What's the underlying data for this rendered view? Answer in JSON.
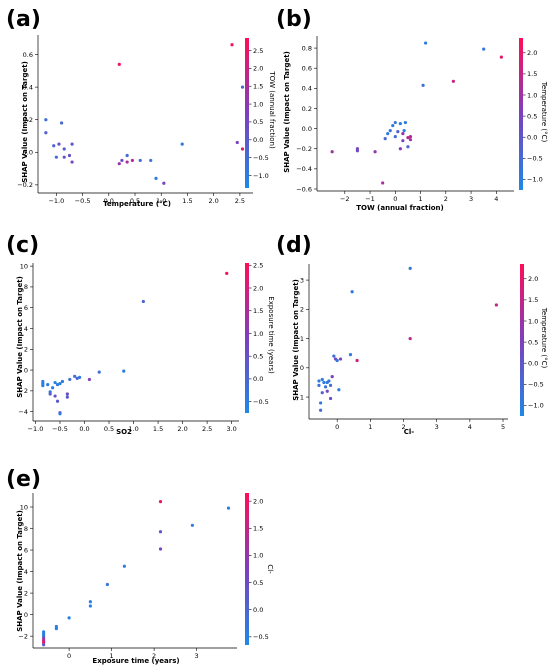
{
  "colors": {
    "low": "#1e88e5",
    "high": "#ff0d57"
  },
  "chart_data": [
    {
      "panel": "(a)",
      "type": "scatter",
      "xlabel": "Temperature (°C)",
      "ylabel": "SHAP Value (Impact on Target)",
      "xlim": [
        -1.35,
        2.75
      ],
      "ylim": [
        -0.25,
        0.72
      ],
      "xticks": [
        -1.0,
        -0.5,
        0.0,
        0.5,
        1.0,
        1.5,
        2.0,
        2.5
      ],
      "xtick_labels": [
        "−1.0",
        "−0.5",
        "0.0",
        "0.5",
        "1.0",
        "1.5",
        "2.0",
        "2.5"
      ],
      "yticks": [
        -0.2,
        0.0,
        0.2,
        0.4,
        0.6
      ],
      "ytick_labels": [
        "−0.2",
        "0.0",
        "0.2",
        "0.4",
        "0.6"
      ],
      "colorbar": {
        "label": "TOW (annual fraction)",
        "range": [
          -1.35,
          2.85
        ],
        "ticks": [
          -1.0,
          -0.5,
          0.0,
          0.5,
          1.0,
          1.5,
          2.0,
          2.5
        ],
        "tick_labels": [
          "−1.0",
          "−0.5",
          "0.0",
          "0.5",
          "1.0",
          "1.5",
          "2.0",
          "2.5"
        ]
      },
      "points": [
        [
          -1.2,
          0.2,
          -0.6
        ],
        [
          -1.2,
          0.12,
          -0.2
        ],
        [
          -1.05,
          0.04,
          -0.3
        ],
        [
          -1.0,
          -0.03,
          -0.5
        ],
        [
          -0.95,
          0.05,
          0.1
        ],
        [
          -0.9,
          0.18,
          -0.4
        ],
        [
          -0.85,
          0.02,
          -0.1
        ],
        [
          -0.85,
          -0.03,
          0.2
        ],
        [
          -0.75,
          -0.02,
          0.3
        ],
        [
          -0.7,
          0.05,
          0.0
        ],
        [
          -0.7,
          -0.06,
          0.5
        ],
        [
          0.2,
          0.54,
          2.6
        ],
        [
          0.2,
          -0.07,
          1.2
        ],
        [
          0.25,
          -0.05,
          0.4
        ],
        [
          0.35,
          -0.02,
          -0.5
        ],
        [
          0.35,
          -0.06,
          1.5
        ],
        [
          0.45,
          -0.05,
          1.8
        ],
        [
          0.6,
          -0.05,
          -0.3
        ],
        [
          0.8,
          -0.05,
          -0.8
        ],
        [
          0.9,
          -0.16,
          -0.9
        ],
        [
          1.05,
          -0.19,
          0.7
        ],
        [
          1.4,
          0.05,
          -0.9
        ],
        [
          2.35,
          0.66,
          2.7
        ],
        [
          2.45,
          0.06,
          0.6
        ],
        [
          2.55,
          0.4,
          -0.4
        ],
        [
          2.55,
          0.02,
          2.3
        ]
      ]
    },
    {
      "panel": "(b)",
      "type": "scatter",
      "xlabel": "TOW (annual fraction)",
      "ylabel": "SHAP Value (Impact on Target)",
      "xlim": [
        -3.1,
        4.7
      ],
      "ylim": [
        -0.62,
        0.92
      ],
      "xticks": [
        -2,
        -1,
        0,
        1,
        2,
        3,
        4
      ],
      "xtick_labels": [
        "−2",
        "−1",
        "0",
        "1",
        "2",
        "3",
        "4"
      ],
      "yticks": [
        -0.6,
        -0.4,
        -0.2,
        0.0,
        0.2,
        0.4,
        0.6,
        0.8
      ],
      "ytick_labels": [
        "−0.6",
        "−0.4",
        "−0.2",
        "0.0",
        "0.2",
        "0.4",
        "0.6",
        "0.8"
      ],
      "colorbar": {
        "label": "Temperature (°C)",
        "range": [
          -1.25,
          2.35
        ],
        "ticks": [
          -1.0,
          -0.5,
          0.0,
          0.5,
          1.0,
          1.5,
          2.0
        ],
        "tick_labels": [
          "−1.0",
          "−0.5",
          "0.0",
          "0.5",
          "1.0",
          "1.5",
          "2.0"
        ]
      },
      "points": [
        [
          -2.5,
          -0.23,
          1.0
        ],
        [
          -1.5,
          -0.2,
          0.5
        ],
        [
          -1.5,
          -0.22,
          0.3
        ],
        [
          -0.8,
          -0.23,
          0.8
        ],
        [
          -0.5,
          -0.54,
          1.1
        ],
        [
          -0.4,
          -0.1,
          -0.5
        ],
        [
          -0.3,
          -0.05,
          -1.0
        ],
        [
          -0.2,
          -0.02,
          -0.7
        ],
        [
          -0.1,
          0.03,
          -1.0
        ],
        [
          0.0,
          0.06,
          -0.8
        ],
        [
          0.0,
          -0.08,
          -0.6
        ],
        [
          0.1,
          -0.03,
          -0.3
        ],
        [
          0.2,
          0.05,
          -1.0
        ],
        [
          0.2,
          -0.2,
          0.7
        ],
        [
          0.3,
          -0.05,
          0.9
        ],
        [
          0.3,
          -0.12,
          0.5
        ],
        [
          0.35,
          -0.02,
          -1.0
        ],
        [
          0.4,
          0.06,
          -0.9
        ],
        [
          0.5,
          -0.09,
          1.3
        ],
        [
          0.5,
          -0.18,
          -0.4
        ],
        [
          0.6,
          -0.08,
          1.4
        ],
        [
          0.6,
          -0.11,
          1.0
        ],
        [
          1.1,
          0.43,
          -0.7
        ],
        [
          1.2,
          0.85,
          -0.9
        ],
        [
          2.3,
          0.47,
          1.6
        ],
        [
          3.5,
          0.79,
          -0.8
        ],
        [
          4.2,
          0.71,
          2.0
        ]
      ]
    },
    {
      "panel": "(c)",
      "type": "scatter",
      "xlabel": "SO2",
      "ylabel": "SHAP Value (Impact on Target)",
      "xlim": [
        -1.05,
        3.15
      ],
      "ylim": [
        -4.9,
        10.3
      ],
      "xticks": [
        -1.0,
        -0.5,
        0.0,
        0.5,
        1.0,
        1.5,
        2.0,
        2.5,
        3.0
      ],
      "xtick_labels": [
        "−1.0",
        "−0.5",
        "0.0",
        "0.5",
        "1.0",
        "1.5",
        "2.0",
        "2.5",
        "3.0"
      ],
      "yticks": [
        -4,
        -2,
        0,
        2,
        4,
        6,
        8,
        10
      ],
      "ytick_labels": [
        "−4",
        "−2",
        "0",
        "2",
        "4",
        "6",
        "8",
        "10"
      ],
      "colorbar": {
        "label": "Exposure time (years)",
        "range": [
          -0.75,
          2.55
        ],
        "ticks": [
          -0.5,
          0.0,
          0.5,
          1.0,
          1.5,
          2.0,
          2.5
        ],
        "tick_labels": [
          "−0.5",
          "0.0",
          "0.5",
          "1.0",
          "1.5",
          "2.0",
          "2.5"
        ]
      },
      "points": [
        [
          -0.85,
          -1.1,
          -0.6
        ],
        [
          -0.85,
          -1.3,
          -0.5
        ],
        [
          -0.85,
          -1.5,
          -0.6
        ],
        [
          -0.75,
          -1.4,
          -0.5
        ],
        [
          -0.7,
          -2.1,
          -0.4
        ],
        [
          -0.7,
          -2.3,
          0.2
        ],
        [
          -0.65,
          -1.7,
          -0.6
        ],
        [
          -0.6,
          -1.2,
          -0.6
        ],
        [
          -0.6,
          -2.5,
          0.4
        ],
        [
          -0.55,
          -1.4,
          -0.5
        ],
        [
          -0.55,
          -3.0,
          0.3
        ],
        [
          -0.5,
          -1.3,
          -0.6
        ],
        [
          -0.5,
          -4.1,
          0.6
        ],
        [
          -0.5,
          -4.2,
          -0.4
        ],
        [
          -0.45,
          -1.1,
          -0.5
        ],
        [
          -0.35,
          -2.3,
          0.5
        ],
        [
          -0.35,
          -2.6,
          0.2
        ],
        [
          -0.3,
          -0.9,
          -0.2
        ],
        [
          -0.2,
          -0.6,
          -0.1
        ],
        [
          -0.15,
          -0.8,
          0.0
        ],
        [
          -0.1,
          -0.7,
          -0.4
        ],
        [
          0.1,
          -0.9,
          0.9
        ],
        [
          0.3,
          -0.2,
          -0.2
        ],
        [
          0.8,
          -0.1,
          -0.5
        ],
        [
          1.2,
          6.6,
          0.0
        ],
        [
          2.9,
          9.3,
          2.4
        ]
      ]
    },
    {
      "panel": "(d)",
      "type": "scatter",
      "xlabel": "Cl-",
      "ylabel": "SHAP Value (Impact on Target)",
      "xlim": [
        -0.85,
        5.15
      ],
      "ylim": [
        -1.75,
        3.55
      ],
      "xticks": [
        0,
        1,
        2,
        3,
        4,
        5
      ],
      "xtick_labels": [
        "0",
        "1",
        "2",
        "3",
        "4",
        "5"
      ],
      "yticks": [
        -1,
        0,
        1,
        2,
        3
      ],
      "ytick_labels": [
        "−1",
        "0",
        "1",
        "2",
        "3"
      ],
      "colorbar": {
        "label": "Temperature (°C)",
        "range": [
          -1.25,
          2.35
        ],
        "ticks": [
          -1.0,
          -0.5,
          0.0,
          0.5,
          1.0,
          1.5,
          2.0
        ],
        "tick_labels": [
          "−1.0",
          "−0.5",
          "0.0",
          "0.5",
          "1.0",
          "1.5",
          "2.0"
        ]
      },
      "points": [
        [
          -0.55,
          -0.45,
          -0.9
        ],
        [
          -0.55,
          -0.6,
          -0.6
        ],
        [
          -0.5,
          -1.45,
          -0.5
        ],
        [
          -0.5,
          -1.2,
          -0.8
        ],
        [
          -0.45,
          -0.85,
          -0.3
        ],
        [
          -0.45,
          -0.4,
          -0.9
        ],
        [
          -0.4,
          -0.5,
          -1.0
        ],
        [
          -0.35,
          -0.65,
          -0.7
        ],
        [
          -0.3,
          -0.5,
          -0.9
        ],
        [
          -0.3,
          -0.8,
          0.3
        ],
        [
          -0.25,
          -0.45,
          -0.8
        ],
        [
          -0.2,
          -1.05,
          0.2
        ],
        [
          -0.2,
          -0.6,
          -0.6
        ],
        [
          -0.15,
          -0.3,
          0.5
        ],
        [
          -0.1,
          0.4,
          -0.6
        ],
        [
          -0.05,
          0.3,
          0.6
        ],
        [
          0.0,
          0.25,
          -0.8
        ],
        [
          0.05,
          -0.75,
          -0.9
        ],
        [
          0.1,
          0.3,
          0.3
        ],
        [
          0.4,
          0.45,
          -0.9
        ],
        [
          0.45,
          2.6,
          -0.9
        ],
        [
          0.6,
          0.25,
          1.8
        ],
        [
          2.2,
          3.4,
          -0.8
        ],
        [
          2.2,
          1.0,
          1.4
        ],
        [
          4.8,
          2.15,
          1.5
        ]
      ]
    },
    {
      "panel": "(e)",
      "type": "scatter",
      "xlabel": "Exposure time (years)",
      "ylabel": "SHAP Value (Impact on Target)",
      "xlim": [
        -0.85,
        3.95
      ],
      "ylim": [
        -3.1,
        11.3
      ],
      "xticks": [
        0,
        1,
        2,
        3
      ],
      "xtick_labels": [
        "0",
        "1",
        "2",
        "3"
      ],
      "yticks": [
        -2,
        0,
        2,
        4,
        6,
        8,
        10
      ],
      "ytick_labels": [
        "−2",
        "0",
        "2",
        "4",
        "6",
        "8",
        "10"
      ],
      "colorbar": {
        "label": "Cl-",
        "range": [
          -0.65,
          2.15
        ],
        "ticks": [
          -0.5,
          0.0,
          0.5,
          1.0,
          1.5,
          2.0
        ],
        "tick_labels": [
          "−0.5",
          "0.0",
          "0.5",
          "1.0",
          "1.5",
          "2.0"
        ]
      },
      "points": [
        [
          -0.6,
          -1.8,
          -0.5
        ],
        [
          -0.6,
          -2.0,
          -0.3
        ],
        [
          -0.6,
          -2.2,
          0.8
        ],
        [
          -0.6,
          -2.4,
          1.5
        ],
        [
          -0.6,
          -2.6,
          1.9
        ],
        [
          -0.6,
          -2.8,
          0.2
        ],
        [
          -0.6,
          -1.6,
          -0.5
        ],
        [
          -0.3,
          -1.1,
          -0.5
        ],
        [
          -0.3,
          -1.3,
          -0.5
        ],
        [
          0.0,
          -0.3,
          -0.5
        ],
        [
          0.5,
          0.8,
          -0.5
        ],
        [
          0.5,
          1.2,
          -0.5
        ],
        [
          0.9,
          2.8,
          -0.3
        ],
        [
          1.3,
          4.5,
          -0.3
        ],
        [
          2.15,
          10.5,
          2.0
        ],
        [
          2.15,
          7.7,
          0.3
        ],
        [
          2.15,
          6.1,
          0.6
        ],
        [
          2.9,
          8.3,
          -0.4
        ],
        [
          3.75,
          9.9,
          -0.4
        ]
      ]
    }
  ]
}
